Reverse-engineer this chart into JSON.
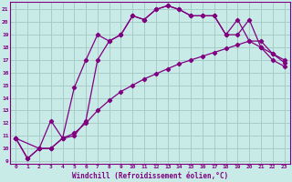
{
  "xlabel": "Windchill (Refroidissement éolien,°C)",
  "bg_color": "#c8ebe8",
  "line_color": "#800080",
  "grid_color": "#a8ccc8",
  "xlim": [
    -0.5,
    23.5
  ],
  "ylim": [
    8.8,
    21.6
  ],
  "xticks": [
    0,
    1,
    2,
    3,
    4,
    5,
    6,
    7,
    8,
    9,
    10,
    11,
    12,
    13,
    14,
    15,
    16,
    17,
    18,
    19,
    20,
    21,
    22,
    23
  ],
  "yticks": [
    9,
    10,
    11,
    12,
    13,
    14,
    15,
    16,
    17,
    18,
    19,
    20,
    21
  ],
  "line1_x": [
    0,
    1,
    2,
    3,
    4,
    5,
    6,
    7,
    8,
    9,
    10,
    11,
    12,
    13,
    14,
    15,
    16,
    17,
    18,
    19,
    20,
    21,
    22,
    23
  ],
  "line1_y": [
    10.8,
    9.2,
    10.0,
    12.2,
    10.8,
    14.8,
    17.0,
    19.0,
    18.5,
    19.0,
    20.5,
    20.2,
    21.0,
    21.3,
    21.0,
    20.5,
    20.5,
    20.5,
    19.0,
    20.2,
    18.5,
    18.5,
    17.5,
    17.0
  ],
  "line2_x": [
    0,
    1,
    2,
    3,
    4,
    5,
    6,
    7,
    8,
    9,
    10,
    11,
    12,
    13,
    14,
    15,
    16,
    17,
    18,
    19,
    20,
    21,
    22,
    23
  ],
  "line2_y": [
    10.8,
    9.2,
    10.0,
    10.0,
    10.8,
    11.0,
    12.2,
    17.0,
    18.5,
    19.0,
    20.5,
    20.2,
    21.0,
    21.3,
    21.0,
    20.5,
    20.5,
    20.5,
    19.0,
    19.0,
    20.2,
    18.0,
    17.5,
    16.8
  ],
  "line3_x": [
    0,
    2,
    3,
    4,
    5,
    6,
    7,
    8,
    9,
    10,
    11,
    12,
    13,
    14,
    15,
    16,
    17,
    18,
    19,
    20,
    21,
    22,
    23
  ],
  "line3_y": [
    10.8,
    10.0,
    10.0,
    10.8,
    11.2,
    12.0,
    13.0,
    13.8,
    14.5,
    15.0,
    15.5,
    15.9,
    16.3,
    16.7,
    17.0,
    17.3,
    17.6,
    17.9,
    18.2,
    18.5,
    18.0,
    17.0,
    16.5
  ]
}
